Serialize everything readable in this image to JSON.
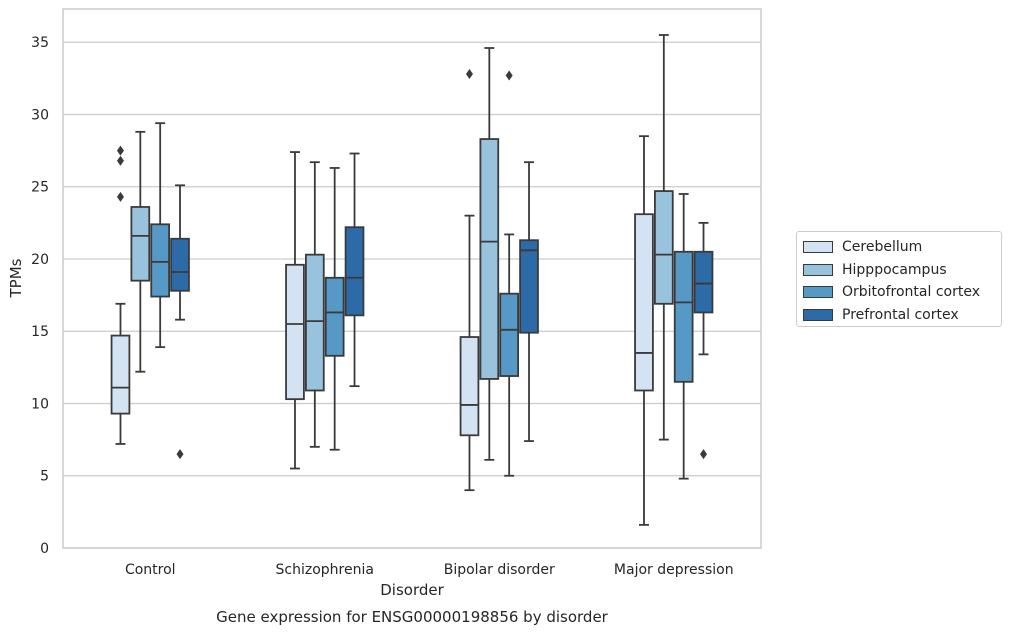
{
  "chart_data": {
    "type": "box",
    "title": "",
    "caption": "Gene expression for ENSG00000198856 by disorder",
    "xlabel": "Disorder",
    "ylabel": "TPMs",
    "categories": [
      "Control",
      "Schizophrenia",
      "Bipolar disorder",
      "Major depression"
    ],
    "ylim": [
      0,
      37.3
    ],
    "yticks": [
      "0",
      "5",
      "10",
      "15",
      "20",
      "25",
      "30",
      "35"
    ],
    "grid": "horizontal",
    "legend_position": "right",
    "series": [
      {
        "name": "Cerebellum",
        "color": "#d4e3f3",
        "boxes": [
          {
            "min": 7.2,
            "q1": 9.3,
            "median": 11.1,
            "q3": 14.7,
            "max": 16.9,
            "outliers": [
              24.3,
              26.8,
              27.5
            ]
          },
          {
            "min": 5.5,
            "q1": 10.3,
            "median": 15.5,
            "q3": 19.6,
            "max": 27.4,
            "outliers": []
          },
          {
            "min": 4.0,
            "q1": 7.8,
            "median": 9.9,
            "q3": 14.6,
            "max": 23.0,
            "outliers": [
              32.8
            ]
          },
          {
            "min": 1.6,
            "q1": 10.9,
            "median": 13.5,
            "q3": 23.1,
            "max": 28.5,
            "outliers": []
          }
        ]
      },
      {
        "name": "Hipppocampus",
        "color": "#99c3dc",
        "boxes": [
          {
            "min": 12.2,
            "q1": 18.5,
            "median": 21.6,
            "q3": 23.6,
            "max": 28.8,
            "outliers": []
          },
          {
            "min": 7.0,
            "q1": 10.9,
            "median": 15.7,
            "q3": 20.3,
            "max": 26.7,
            "outliers": []
          },
          {
            "min": 6.1,
            "q1": 11.7,
            "median": 21.2,
            "q3": 28.3,
            "max": 34.6,
            "outliers": []
          },
          {
            "min": 7.5,
            "q1": 16.9,
            "median": 20.3,
            "q3": 24.7,
            "max": 35.5,
            "outliers": []
          }
        ]
      },
      {
        "name": "Orbitofrontal cortex",
        "color": "#5699c6",
        "boxes": [
          {
            "min": 13.9,
            "q1": 17.4,
            "median": 19.8,
            "q3": 22.4,
            "max": 29.4,
            "outliers": []
          },
          {
            "min": 6.8,
            "q1": 13.3,
            "median": 16.3,
            "q3": 18.7,
            "max": 26.3,
            "outliers": []
          },
          {
            "min": 5.0,
            "q1": 11.9,
            "median": 15.1,
            "q3": 17.6,
            "max": 21.7,
            "outliers": [
              32.7
            ]
          },
          {
            "min": 4.8,
            "q1": 11.5,
            "median": 17.0,
            "q3": 20.5,
            "max": 24.5,
            "outliers": []
          }
        ]
      },
      {
        "name": "Prefrontal cortex",
        "color": "#2c6aa8",
        "boxes": [
          {
            "min": 15.8,
            "q1": 17.8,
            "median": 19.1,
            "q3": 21.4,
            "max": 25.1,
            "outliers": [
              6.5
            ]
          },
          {
            "min": 11.2,
            "q1": 16.1,
            "median": 18.7,
            "q3": 22.2,
            "max": 27.3,
            "outliers": []
          },
          {
            "min": 7.4,
            "q1": 14.9,
            "median": 20.6,
            "q3": 21.3,
            "max": 26.7,
            "outliers": []
          },
          {
            "min": 13.4,
            "q1": 16.3,
            "median": 18.3,
            "q3": 20.5,
            "max": 22.5,
            "outliers": [
              6.5
            ]
          }
        ]
      }
    ]
  }
}
